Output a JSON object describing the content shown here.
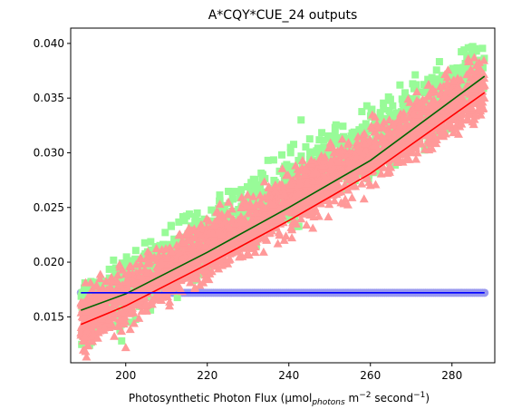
{
  "chart_data": {
    "type": "scatter",
    "title": "A*CQY*CUE_24 outputs",
    "xlabel": {
      "main": "Photosynthetic Photon Flux (μmol",
      "sub": "photons",
      "mid": " m",
      "sup1": "−2",
      "tail": " second",
      "sup2": "−1",
      "close": ")"
    },
    "ylabel": "",
    "xlim": [
      186.5,
      290.5
    ],
    "ylim": [
      0.0108,
      0.0414
    ],
    "xticks": [
      200,
      220,
      240,
      260,
      280
    ],
    "xtick_labels": [
      "200",
      "220",
      "240",
      "260",
      "280"
    ],
    "yticks": [
      0.015,
      0.02,
      0.025,
      0.03,
      0.035,
      0.04
    ],
    "ytick_labels": [
      "0.015",
      "0.020",
      "0.025",
      "0.030",
      "0.035",
      "0.040"
    ],
    "grid": false,
    "series": [
      {
        "marker": "square",
        "color": "#98fb98",
        "x_range": [
          189,
          288
        ],
        "y_center_at_x_min": 0.015,
        "y_center_at_x_max": 0.0375,
        "spread": 0.0045,
        "extreme_points": [
          [
            284,
            0.0396
          ],
          [
            286,
            0.0393
          ],
          [
            283,
            0.0394
          ],
          [
            190,
            0.0181
          ],
          [
            199,
            0.0128
          ],
          [
            243,
            0.033
          ]
        ]
      },
      {
        "marker": "triangle",
        "color": "#ff9999",
        "x_range": [
          189,
          288
        ],
        "y_center_at_x_min": 0.0144,
        "y_center_at_x_max": 0.036,
        "spread": 0.004,
        "extreme_points": [
          [
            284,
            0.0386
          ],
          [
            286,
            0.038
          ],
          [
            190,
            0.0132
          ],
          [
            200,
            0.0122
          ],
          [
            288,
            0.0362
          ]
        ]
      },
      {
        "marker": "circle",
        "color": "#9999ee",
        "x": [
          189,
          288
        ],
        "y": [
          0.0172,
          0.0172
        ]
      }
    ],
    "fit_lines": [
      {
        "color": "#006400",
        "x": [
          189,
          200,
          220,
          240,
          260,
          288
        ],
        "y": [
          0.0156,
          0.0171,
          0.0209,
          0.025,
          0.0293,
          0.037
        ]
      },
      {
        "color": "#ff0000",
        "x": [
          189,
          200,
          220,
          240,
          260,
          288
        ],
        "y": [
          0.0143,
          0.016,
          0.0198,
          0.0238,
          0.0281,
          0.0355
        ]
      },
      {
        "color": "#0000ff",
        "x": [
          189,
          288
        ],
        "y": [
          0.0172,
          0.0172
        ]
      }
    ]
  }
}
